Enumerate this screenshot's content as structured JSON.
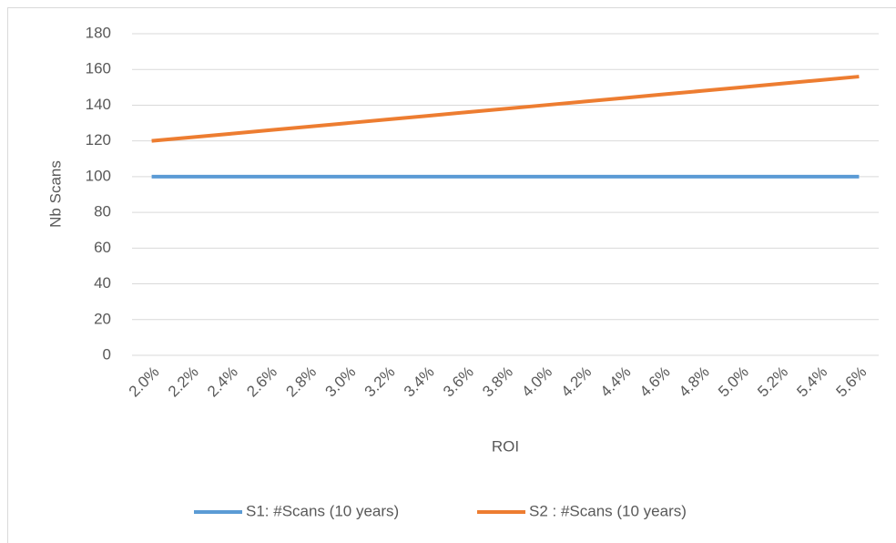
{
  "chart_data": {
    "type": "line",
    "x_label": "ROI",
    "y_label": "Nb Scans",
    "categories": [
      "2.0%",
      "2.2%",
      "2.4%",
      "2.6%",
      "2.8%",
      "3.0%",
      "3.2%",
      "3.4%",
      "3.6%",
      "3.8%",
      "4.0%",
      "4.2%",
      "4.4%",
      "4.6%",
      "4.8%",
      "5.0%",
      "5.2%",
      "5.4%",
      "5.6%"
    ],
    "series": [
      {
        "name": "S1: #Scans (10 years)",
        "color": "#5b9bd5",
        "values": [
          100,
          100,
          100,
          100,
          100,
          100,
          100,
          100,
          100,
          100,
          100,
          100,
          100,
          100,
          100,
          100,
          100,
          100,
          100
        ]
      },
      {
        "name": "S2 : #Scans (10 years)",
        "color": "#ed7d31",
        "values": [
          120,
          122,
          124,
          126,
          128,
          130,
          132,
          134,
          136,
          138,
          140,
          142,
          144,
          146,
          148,
          150,
          152,
          154,
          156
        ]
      }
    ],
    "ylim": [
      0,
      180
    ],
    "yticks": [
      0,
      20,
      40,
      60,
      80,
      100,
      120,
      140,
      160,
      180
    ],
    "grid": true,
    "legend": "bottom"
  }
}
